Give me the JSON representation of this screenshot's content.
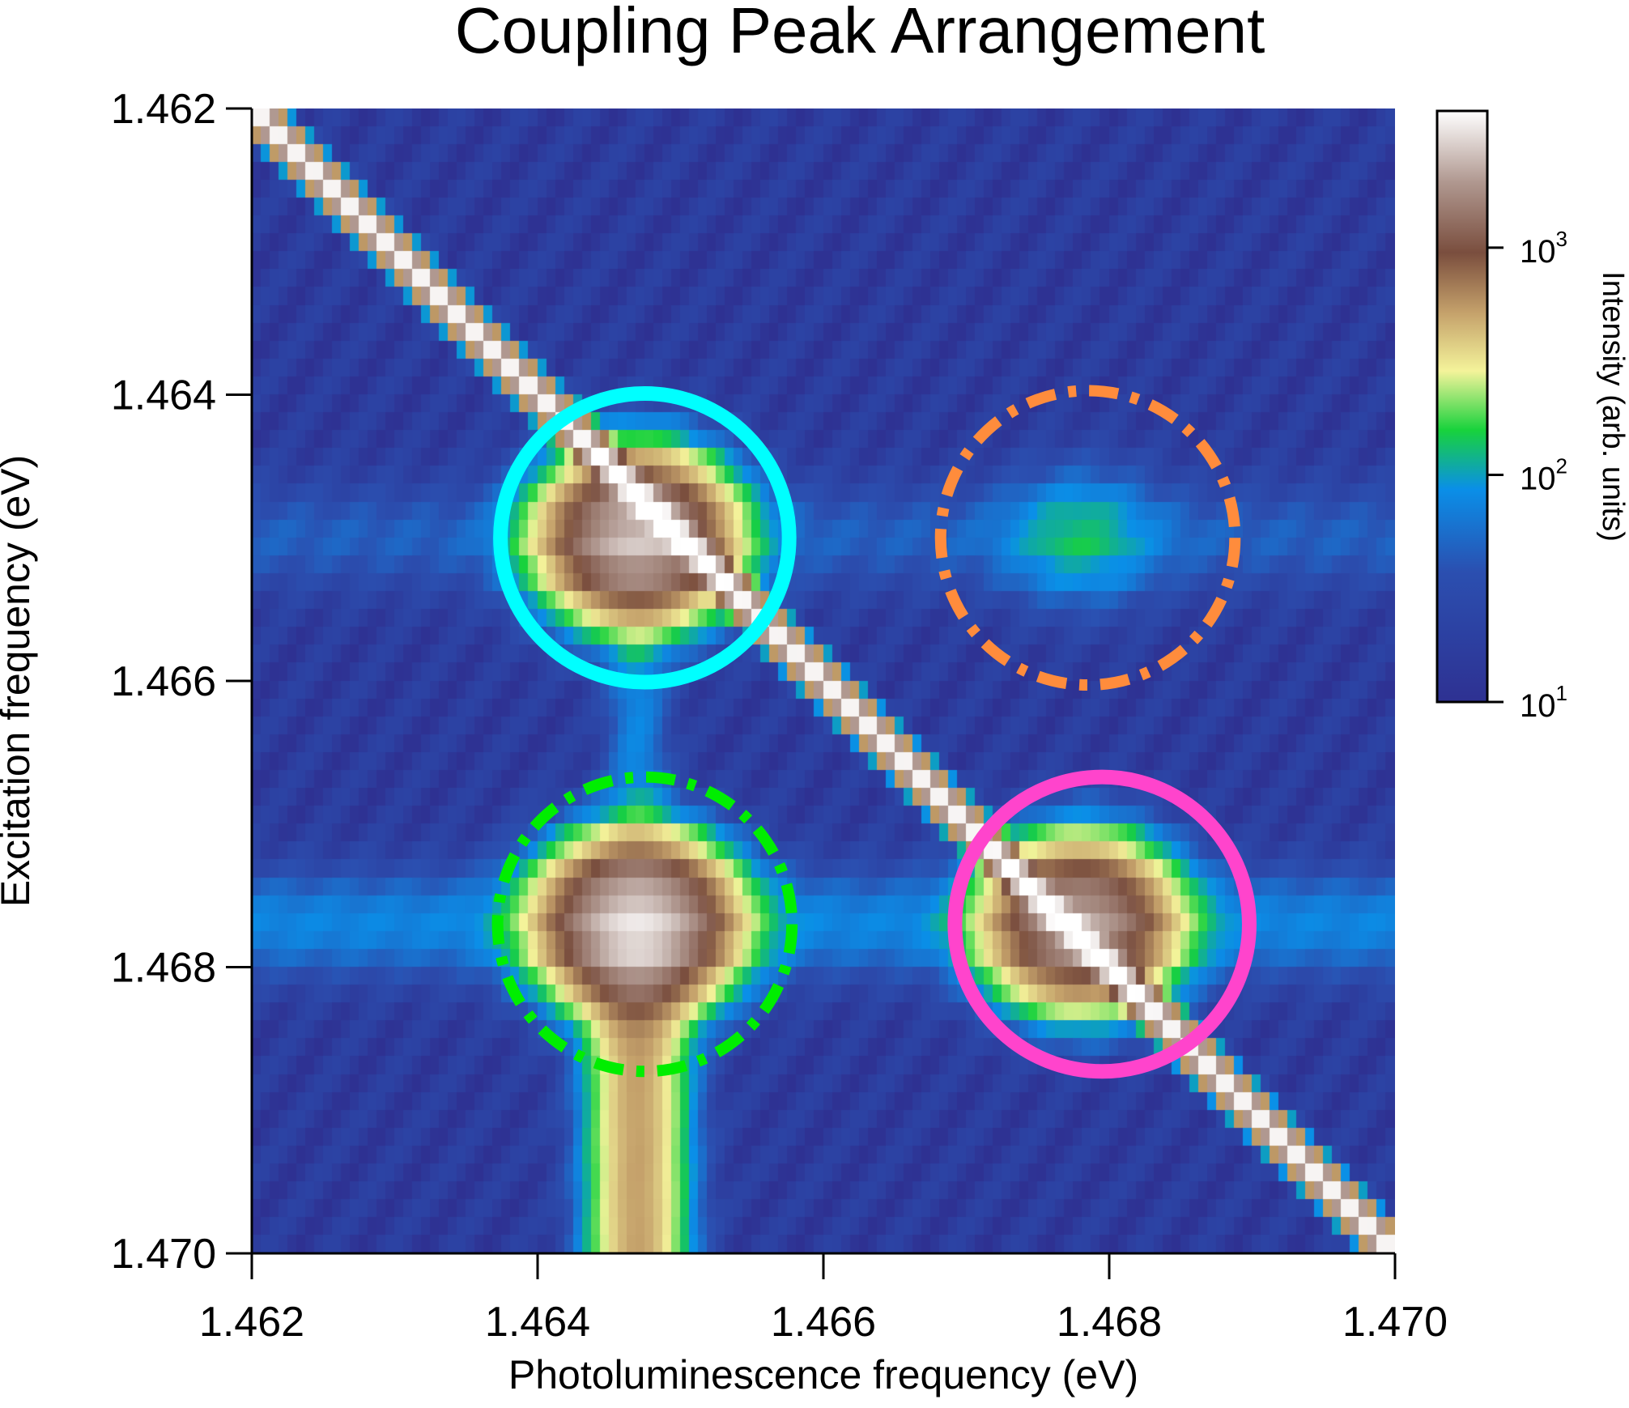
{
  "chart_data": {
    "type": "heatmap",
    "title": "Coupling Peak Arrangement",
    "xlabel": "Photoluminescence frequency (eV)",
    "ylabel": "Excitation frequency (eV)",
    "xlim": [
      1.462,
      1.47
    ],
    "ylim": [
      1.462,
      1.47
    ],
    "y_inverted": true,
    "xticks": [
      "1.462",
      "1.464",
      "1.466",
      "1.468",
      "1.470"
    ],
    "yticks": [
      "1.462",
      "1.464",
      "1.466",
      "1.468",
      "1.470"
    ],
    "colorbar": {
      "label": "Intensity (arb. units)",
      "scale": "log",
      "range": [
        10,
        4000
      ],
      "ticks": [
        {
          "value": 10,
          "base": "10",
          "exp": "1"
        },
        {
          "value": 100,
          "base": "10",
          "exp": "2"
        },
        {
          "value": 1000,
          "base": "10",
          "exp": "3"
        }
      ],
      "colors": [
        "#2e3192",
        "#2b4fb0",
        "#0a8fe8",
        "#18d23c",
        "#f4f39a",
        "#c4a06a",
        "#7a4e3e",
        "#ffffff"
      ]
    },
    "features": [
      {
        "name": "diagonal",
        "x": [
          1.462,
          1.47
        ],
        "y": [
          1.462,
          1.47
        ],
        "intensity": 4000
      },
      {
        "name": "peak",
        "x": 1.4647,
        "y": 1.465,
        "intensity": 2500
      },
      {
        "name": "peak",
        "x": 1.4647,
        "y": 1.4677,
        "intensity": 3000
      },
      {
        "name": "peak",
        "x": 1.4678,
        "y": 1.4677,
        "intensity": 2000
      },
      {
        "name": "peak",
        "x": 1.4678,
        "y": 1.465,
        "intensity": 90
      }
    ],
    "annotations": [
      {
        "type": "circle",
        "style": "solid",
        "color": "#00ffff",
        "cx": 1.46475,
        "cy": 1.465,
        "r": 0.00101
      },
      {
        "type": "circle",
        "style": "dashed",
        "color": "#ff8c3c",
        "cx": 1.46785,
        "cy": 1.465,
        "r": 0.00103
      },
      {
        "type": "circle",
        "style": "dashed",
        "color": "#00ee00",
        "cx": 1.46475,
        "cy": 1.4677,
        "r": 0.00103
      },
      {
        "type": "circle",
        "style": "solid",
        "color": "#ff44cc",
        "cx": 1.46795,
        "cy": 1.4677,
        "r": 0.00103
      }
    ]
  }
}
